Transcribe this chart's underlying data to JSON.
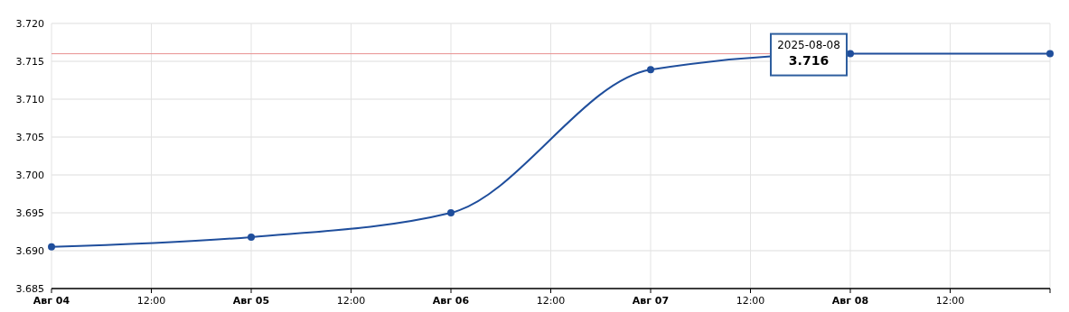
{
  "chart_data": {
    "type": "line",
    "x": [
      "2025-08-04",
      "2025-08-05",
      "2025-08-06",
      "2025-08-07",
      "2025-08-08",
      "2025-08-09"
    ],
    "series": [
      {
        "color": "#1f4e9c",
        "values": [
          3.6905,
          3.6918,
          3.695,
          3.7139,
          3.716,
          3.716
        ]
      }
    ],
    "xlim": [
      "2025-08-04",
      "2025-08-09"
    ],
    "xticks": [
      {
        "value": "2025-08-04",
        "label": "Авг 04"
      },
      {
        "value": "2025-08-04T12:00",
        "label": "12:00"
      },
      {
        "value": "2025-08-05",
        "label": "Авг 05"
      },
      {
        "value": "2025-08-05T12:00",
        "label": "12:00"
      },
      {
        "value": "2025-08-06",
        "label": "Авг 06"
      },
      {
        "value": "2025-08-06T12:00",
        "label": "12:00"
      },
      {
        "value": "2025-08-07",
        "label": "Авг 07"
      },
      {
        "value": "2025-08-07T12:00",
        "label": "12:00"
      },
      {
        "value": "2025-08-08",
        "label": "Авг 08"
      },
      {
        "value": "2025-08-08T12:00",
        "label": "12:00"
      },
      {
        "value": "2025-08-09",
        "label": null
      }
    ],
    "ylim": [
      3.685,
      3.72
    ],
    "yticks": [
      {
        "value": 3.685,
        "label": "3.685"
      },
      {
        "value": 3.69,
        "label": "3.690"
      },
      {
        "value": 3.695,
        "label": "3.695"
      },
      {
        "value": 3.7,
        "label": "3.700"
      },
      {
        "value": 3.705,
        "label": "3.705"
      },
      {
        "value": 3.71,
        "label": "3.710"
      },
      {
        "value": 3.715,
        "label": "3.715"
      },
      {
        "value": 3.72,
        "label": "3.720"
      }
    ],
    "ref_lines": [
      {
        "axis": "y",
        "value": 3.716,
        "color": "#e89090"
      }
    ],
    "annotations": [
      {
        "text": "2025-08-08",
        "x": "2025-08-08",
        "y": 3.716
      },
      "3.716"
    ],
    "grid": true,
    "marker": "circle",
    "line_style": "solid"
  }
}
